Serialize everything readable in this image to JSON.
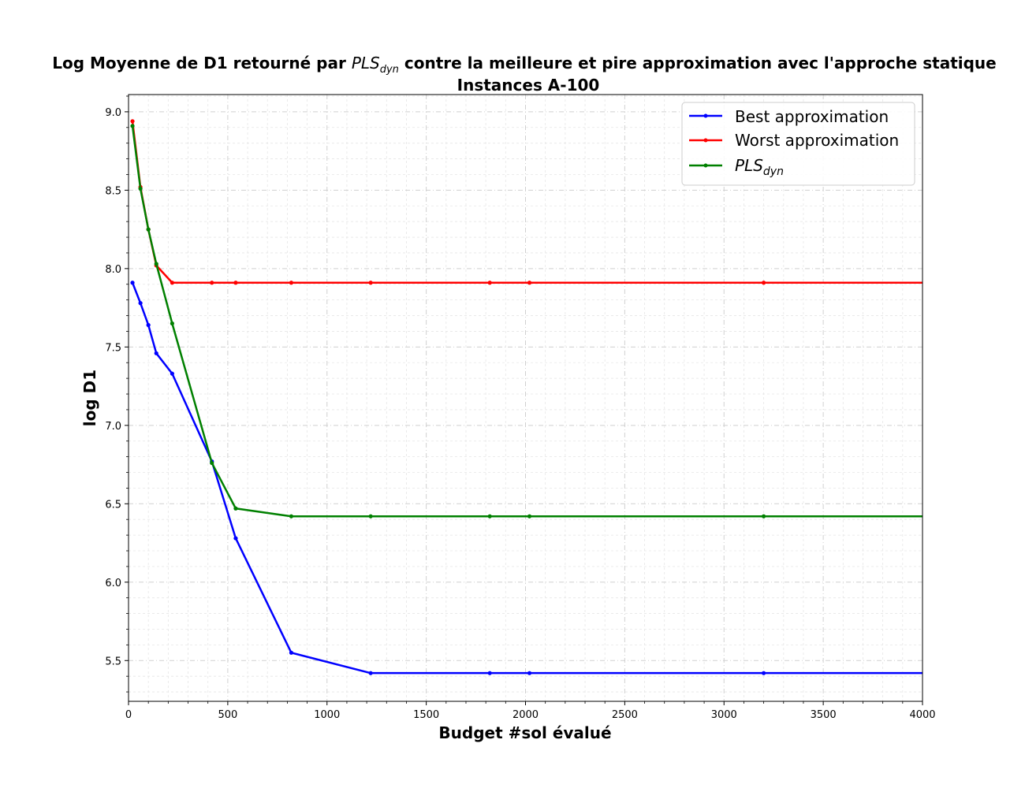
{
  "chart_data": {
    "type": "line",
    "title_prefix": "Log Moyenne de D1 retourné par ",
    "title_math_main": "PLS",
    "title_math_sub": "dyn",
    "title_suffix": " contre la meilleure et pire approximation avec l'approche statique",
    "subtitle": "Instances  A-100",
    "xlabel": "Budget #sol évalué",
    "ylabel": "log D1",
    "xlim": [
      0,
      4000
    ],
    "ylim": [
      5.24,
      9.11
    ],
    "x_ticks": [
      0,
      500,
      1000,
      1500,
      2000,
      2500,
      3000,
      3500,
      4000
    ],
    "y_ticks": [
      5.5,
      6.0,
      6.5,
      7.0,
      7.5,
      8.0,
      8.5,
      9.0
    ],
    "x_tick_labels": [
      "0",
      "500",
      "1000",
      "1500",
      "2000",
      "2500",
      "3000",
      "3500",
      "4000"
    ],
    "y_tick_labels": [
      "5.5",
      "6.0",
      "6.5",
      "7.0",
      "7.5",
      "8.0",
      "8.5",
      "9.0"
    ],
    "grid": true,
    "legend_position": "top-right",
    "series": [
      {
        "name": "Best approximation",
        "color": "#0000ff",
        "x": [
          20,
          60,
          100,
          140,
          220,
          420,
          540,
          820,
          1220,
          1820,
          2020,
          3200,
          4000
        ],
        "y": [
          7.91,
          7.78,
          7.64,
          7.46,
          7.33,
          6.77,
          6.28,
          5.55,
          5.42,
          5.42,
          5.42,
          5.42,
          5.42
        ],
        "markers": [
          true,
          true,
          true,
          true,
          true,
          true,
          true,
          true,
          true,
          true,
          true,
          true,
          false
        ]
      },
      {
        "name": "Worst approximation",
        "color": "#ff0000",
        "x": [
          20,
          60,
          100,
          140,
          220,
          420,
          540,
          820,
          1220,
          1820,
          2020,
          3200,
          4000
        ],
        "y": [
          8.94,
          8.52,
          8.25,
          8.02,
          7.91,
          7.91,
          7.91,
          7.91,
          7.91,
          7.91,
          7.91,
          7.91,
          7.91
        ],
        "markers": [
          true,
          true,
          true,
          true,
          true,
          true,
          true,
          true,
          true,
          true,
          true,
          true,
          false
        ]
      },
      {
        "name_main": "PLS",
        "name_sub": "dyn",
        "color": "#008000",
        "x": [
          20,
          60,
          100,
          140,
          220,
          420,
          540,
          820,
          1220,
          1820,
          2020,
          3200,
          4000
        ],
        "y": [
          8.91,
          8.51,
          8.25,
          8.03,
          7.65,
          6.76,
          6.47,
          6.42,
          6.42,
          6.42,
          6.42,
          6.42,
          6.42
        ],
        "markers": [
          true,
          true,
          true,
          true,
          true,
          true,
          true,
          true,
          true,
          true,
          true,
          true,
          false
        ]
      }
    ]
  }
}
